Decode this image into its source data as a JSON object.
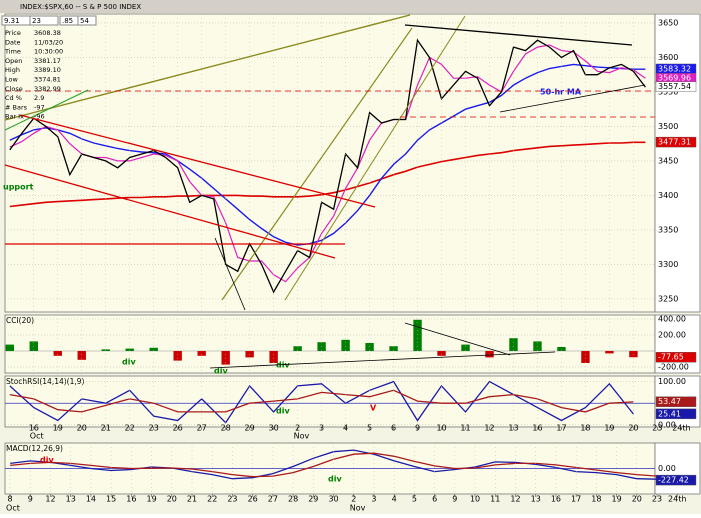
{
  "header": {
    "title": "INDEX:$SPX,60 -- S & P 500 INDEX",
    "fields": [
      "9.31",
      "23",
      ".85",
      "54"
    ]
  },
  "info": [
    {
      "label": "Price",
      "value": "3608.38"
    },
    {
      "label": "Date",
      "value": "11/03/20"
    },
    {
      "label": "Time",
      "value": "10:30:00"
    },
    {
      "label": "Open",
      "value": "3381.17"
    },
    {
      "label": "High",
      "value": "3389.10"
    },
    {
      "label": "Low",
      "value": "3374.81"
    },
    {
      "label": "Close",
      "value": "3382.99"
    },
    {
      "label": "Cd %",
      "value": "2.9"
    },
    {
      "label": "# Bars",
      "value": "-97"
    },
    {
      "label": "Bar Ix",
      "value": "-96"
    }
  ],
  "chart_data": [
    {
      "type": "line",
      "xlim": [
        -1.2,
        25.9
      ],
      "ylim": [
        3231,
        3663
      ],
      "yticks": [
        3250,
        3300,
        3350,
        3400,
        3450,
        3500,
        3550,
        3600,
        3650
      ],
      "x": [
        -1,
        -0.5,
        0,
        0.5,
        1,
        1.5,
        2,
        2.5,
        3,
        3.5,
        4,
        4.5,
        5,
        5.5,
        6,
        6.5,
        7,
        7.5,
        8,
        8.5,
        9,
        9.5,
        10,
        10.5,
        11,
        11.5,
        12,
        12.5,
        13,
        13.5,
        14,
        14.5,
        15,
        15.5,
        16,
        16.5,
        17,
        17.5,
        18,
        18.5,
        19,
        19.5,
        20,
        20.5,
        21,
        21.5,
        22,
        22.5,
        23,
        23.5,
        24,
        24.5,
        25,
        25.5
      ],
      "series": [
        {
          "color": "#dd0000",
          "width": 1.6,
          "values": [
            3384,
            3386,
            3388,
            3390,
            3391,
            3392,
            3393,
            3394,
            3395,
            3396,
            3397,
            3397,
            3398,
            3398,
            3399,
            3399,
            3400,
            3400,
            3400,
            3400,
            3399,
            3399,
            3398,
            3398,
            3398,
            3399,
            3401,
            3404,
            3408,
            3413,
            3418,
            3424,
            3430,
            3435,
            3441,
            3445,
            3449,
            3452,
            3455,
            3458,
            3460,
            3462,
            3465,
            3467,
            3469,
            3471,
            3472,
            3473,
            3474,
            3475,
            3476,
            3476,
            3477,
            3477
          ]
        },
        {
          "color": "#1a1aee",
          "width": 1.4,
          "values": [
            3480,
            3488,
            3495,
            3498,
            3495,
            3490,
            3482,
            3476,
            3472,
            3468,
            3465,
            3463,
            3462,
            3460,
            3450,
            3438,
            3425,
            3410,
            3395,
            3380,
            3365,
            3352,
            3340,
            3332,
            3328,
            3330,
            3335,
            3345,
            3360,
            3378,
            3400,
            3425,
            3445,
            3460,
            3480,
            3495,
            3505,
            3515,
            3525,
            3530,
            3535,
            3545,
            3560,
            3570,
            3578,
            3584,
            3587,
            3590,
            3588,
            3586,
            3585,
            3584,
            3583,
            3583
          ]
        },
        {
          "color": "#e020c0",
          "width": 1.2,
          "values": [
            3470,
            3478,
            3490,
            3500,
            3495,
            3475,
            3460,
            3455,
            3455,
            3450,
            3450,
            3455,
            3460,
            3458,
            3450,
            3420,
            3400,
            3398,
            3360,
            3310,
            3305,
            3305,
            3285,
            3275,
            3295,
            3310,
            3345,
            3370,
            3410,
            3440,
            3480,
            3505,
            3510,
            3510,
            3560,
            3600,
            3590,
            3570,
            3570,
            3572,
            3560,
            3550,
            3580,
            3605,
            3615,
            3618,
            3610,
            3608,
            3595,
            3580,
            3578,
            3585,
            3582,
            3570
          ]
        },
        {
          "color": "#000000",
          "width": 1.3,
          "values": [
            3466,
            3490,
            3512,
            3500,
            3485,
            3430,
            3460,
            3455,
            3450,
            3440,
            3455,
            3460,
            3465,
            3455,
            3440,
            3390,
            3400,
            3395,
            3300,
            3290,
            3330,
            3300,
            3260,
            3290,
            3320,
            3310,
            3390,
            3380,
            3460,
            3440,
            3520,
            3505,
            3510,
            3510,
            3625,
            3600,
            3540,
            3560,
            3580,
            3570,
            3530,
            3550,
            3615,
            3610,
            3625,
            3615,
            3600,
            3610,
            3575,
            3575,
            3585,
            3590,
            3580,
            3557
          ]
        }
      ],
      "last_labels": [
        {
          "value": 3583.32,
          "color": "#1a1aee",
          "text_color": "#ffffff"
        },
        {
          "value": 3569.96,
          "color": "#e020c0",
          "text_color": "#ffffff"
        },
        {
          "value": 3557.54,
          "color": "#ffffff",
          "text_color": "#000000"
        },
        {
          "value": 3477.31,
          "color": "#dd0000",
          "text_color": "#ffffff"
        }
      ],
      "annotations": [
        {
          "text": "upport",
          "color": "#008000"
        },
        {
          "text": "50-hr MA",
          "color": "#1a1aee"
        }
      ]
    },
    {
      "type": "bar",
      "title": "CCI(20)",
      "xlim": [
        -1.2,
        25.9
      ],
      "ylim": [
        -275,
        450
      ],
      "yticks": [
        {
          "value": 400,
          "label": "400.00"
        },
        {
          "value": 200,
          "label": "200.00"
        },
        {
          "value": -200,
          "label": "-200.00"
        }
      ],
      "up_color": "#008000",
      "down_color": "#cc0000",
      "x": [
        -1,
        0,
        1,
        2,
        3,
        4,
        5,
        6,
        7,
        8,
        9,
        10,
        11,
        12,
        13,
        14,
        15,
        16,
        17,
        18,
        19,
        20,
        21,
        22,
        23,
        24,
        25
      ],
      "values": [
        80,
        120,
        -60,
        -110,
        20,
        30,
        40,
        -120,
        -60,
        -170,
        -80,
        -150,
        60,
        110,
        140,
        100,
        60,
        390,
        -60,
        80,
        -80,
        160,
        120,
        50,
        -150,
        -30,
        -78
      ],
      "last_labels": [
        {
          "value": -77.65,
          "color": "#dd0000",
          "text_color": "#ffffff"
        }
      ],
      "annotations": [
        {
          "text": "div",
          "color": "#008000"
        },
        {
          "text": "div",
          "color": "#008000"
        },
        {
          "text": "div",
          "color": "#008000"
        }
      ]
    },
    {
      "type": "line",
      "title": "StochRSI(14,14)(1,9)",
      "xlim": [
        -1.2,
        25.9
      ],
      "ylim": [
        -5,
        113
      ],
      "yticks": [
        {
          "value": 100,
          "label": "100.00"
        },
        {
          "value": 0,
          "label": "0.00"
        }
      ],
      "ref_lines": [
        50
      ],
      "x": [
        -1,
        0,
        1,
        2,
        3,
        4,
        5,
        6,
        7,
        8,
        9,
        10,
        11,
        12,
        13,
        14,
        15,
        16,
        17,
        18,
        19,
        20,
        21,
        22,
        23,
        24,
        25
      ],
      "series": [
        {
          "color": "#1a1aaa",
          "width": 1.3,
          "values": [
            90,
            40,
            10,
            60,
            50,
            80,
            20,
            10,
            60,
            5,
            90,
            30,
            90,
            95,
            50,
            80,
            100,
            10,
            90,
            30,
            100,
            70,
            40,
            10,
            40,
            95,
            25
          ]
        },
        {
          "color": "#aa1a1a",
          "width": 1.3,
          "values": [
            70,
            60,
            35,
            30,
            45,
            60,
            50,
            30,
            30,
            30,
            50,
            55,
            60,
            75,
            70,
            65,
            80,
            55,
            50,
            50,
            65,
            70,
            60,
            40,
            30,
            50,
            53
          ]
        }
      ],
      "last_labels": [
        {
          "value": 53.47,
          "color": "#aa1a1a",
          "text_color": "#ffffff"
        },
        {
          "value": 25.41,
          "color": "#1a1aaa",
          "text_color": "#ffffff"
        }
      ],
      "xticks": [
        {
          "value": 0,
          "label": "16"
        },
        {
          "value": 1,
          "label": "19"
        },
        {
          "value": 2,
          "label": "20"
        },
        {
          "value": 3,
          "label": "21"
        },
        {
          "value": 4,
          "label": "22"
        },
        {
          "value": 5,
          "label": "23"
        },
        {
          "value": 6,
          "label": "26"
        },
        {
          "value": 7,
          "label": "27"
        },
        {
          "value": 8,
          "label": "28"
        },
        {
          "value": 9,
          "label": "29"
        },
        {
          "value": 10,
          "label": "30"
        },
        {
          "value": 11,
          "label": "2"
        },
        {
          "value": 12,
          "label": "3"
        },
        {
          "value": 13,
          "label": "4"
        },
        {
          "value": 14,
          "label": "5"
        },
        {
          "value": 15,
          "label": "6"
        },
        {
          "value": 16,
          "label": "9"
        },
        {
          "value": 17,
          "label": "10"
        },
        {
          "value": 18,
          "label": "11"
        },
        {
          "value": 19,
          "label": "12"
        },
        {
          "value": 20,
          "label": "13"
        },
        {
          "value": 21,
          "label": "16"
        },
        {
          "value": 22,
          "label": "17"
        },
        {
          "value": 23,
          "label": "18"
        },
        {
          "value": 24,
          "label": "19"
        },
        {
          "value": 25,
          "label": "20"
        },
        {
          "value": 26,
          "label": "23"
        },
        {
          "value": 27,
          "label": "24th"
        }
      ],
      "months": [
        {
          "value": 0,
          "label": "Oct"
        },
        {
          "value": 11,
          "label": "Nov"
        }
      ],
      "annotations": [
        {
          "text": "div",
          "color": "#008000"
        },
        {
          "text": "V",
          "color": "#dd0000"
        }
      ]
    },
    {
      "type": "line",
      "title": "MACD(12,26,9)",
      "xlim": [
        -0.25,
        31.9
      ],
      "ylim": [
        -500,
        500
      ],
      "ref_lines": [
        0
      ],
      "yticks": [
        {
          "value": 0,
          "label": "0.00"
        }
      ],
      "x": [
        0,
        1,
        2,
        3,
        4,
        5,
        6,
        7,
        8,
        9,
        10,
        11,
        12,
        13,
        14,
        15,
        16,
        17,
        18,
        19,
        20,
        21,
        22,
        23,
        24,
        25,
        26,
        27,
        28,
        29,
        30,
        31,
        32,
        33
      ],
      "series": [
        {
          "color": "#1a1aaa",
          "width": 1.3,
          "values": [
            100,
            150,
            120,
            60,
            0,
            -40,
            -20,
            30,
            10,
            -60,
            -120,
            -200,
            -180,
            -100,
            40,
            200,
            330,
            360,
            280,
            150,
            40,
            -60,
            -20,
            30,
            130,
            120,
            80,
            20,
            -60,
            -80,
            -120,
            -200,
            -210,
            -227
          ]
        },
        {
          "color": "#aa1a1a",
          "width": 1.3,
          "values": [
            60,
            100,
            120,
            100,
            60,
            20,
            0,
            5,
            10,
            -10,
            -60,
            -120,
            -160,
            -150,
            -80,
            40,
            180,
            280,
            300,
            240,
            140,
            50,
            0,
            10,
            70,
            100,
            100,
            70,
            20,
            -30,
            -80,
            -120,
            -150,
            -170
          ]
        }
      ],
      "last_labels": [
        {
          "value": -227.42,
          "color": "#1a1aaa",
          "text_color": "#ffffff"
        }
      ],
      "xticks": [
        {
          "value": 0,
          "label": "8"
        },
        {
          "value": 1,
          "label": "9"
        },
        {
          "value": 2,
          "label": "12"
        },
        {
          "value": 3,
          "label": "13"
        },
        {
          "value": 4,
          "label": "14"
        },
        {
          "value": 5,
          "label": "15"
        },
        {
          "value": 6,
          "label": "16"
        },
        {
          "value": 7,
          "label": "19"
        },
        {
          "value": 8,
          "label": "20"
        },
        {
          "value": 9,
          "label": "21"
        },
        {
          "value": 10,
          "label": "22"
        },
        {
          "value": 11,
          "label": "23"
        },
        {
          "value": 12,
          "label": "26"
        },
        {
          "value": 13,
          "label": "27"
        },
        {
          "value": 14,
          "label": "28"
        },
        {
          "value": 15,
          "label": "29"
        },
        {
          "value": 16,
          "label": "30"
        },
        {
          "value": 17,
          "label": "2"
        },
        {
          "value": 18,
          "label": "3"
        },
        {
          "value": 19,
          "label": "4"
        },
        {
          "value": 20,
          "label": "5"
        },
        {
          "value": 21,
          "label": "6"
        },
        {
          "value": 22,
          "label": "9"
        },
        {
          "value": 23,
          "label": "10"
        },
        {
          "value": 24,
          "label": "11"
        },
        {
          "value": 25,
          "label": "12"
        },
        {
          "value": 26,
          "label": "13"
        },
        {
          "value": 27,
          "label": "16"
        },
        {
          "value": 28,
          "label": "17"
        },
        {
          "value": 29,
          "label": "18"
        },
        {
          "value": 30,
          "label": "19"
        },
        {
          "value": 31,
          "label": "20"
        },
        {
          "value": 32,
          "label": "23"
        },
        {
          "value": 33,
          "label": "24th"
        }
      ],
      "months": [
        {
          "value": 0,
          "label": "Oct"
        },
        {
          "value": 17,
          "label": "Nov"
        }
      ],
      "annotations": [
        {
          "text": "div",
          "color": "#dd0000"
        },
        {
          "text": "div",
          "color": "#008000"
        }
      ]
    }
  ]
}
